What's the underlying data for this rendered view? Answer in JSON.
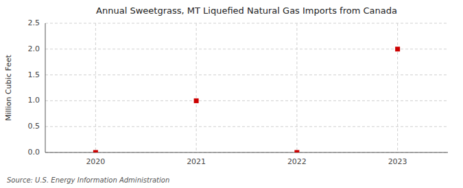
{
  "chart_data": {
    "type": "scatter",
    "title": "Annual Sweetgrass, MT Liquefied Natural Gas Imports from Canada",
    "ylabel": "Million Cubic Feet",
    "source": "Source: U.S. Energy Information Administration",
    "x": [
      2020,
      2021,
      2022,
      2023
    ],
    "values": [
      0,
      1.0,
      0,
      2.0
    ],
    "xlim": [
      2019.5,
      2023.5
    ],
    "ylim": [
      0,
      2.5
    ],
    "xticks": [
      2020,
      2021,
      2022,
      2023
    ],
    "yticks": [
      {
        "value": 0.0,
        "label": "0.0"
      },
      0.5,
      {
        "value": 1.0,
        "label": "1.0"
      },
      1.5,
      {
        "value": 2.0,
        "label": "2.0"
      },
      2.5
    ],
    "color": "#cc0000",
    "marker": "square",
    "grid": true
  }
}
